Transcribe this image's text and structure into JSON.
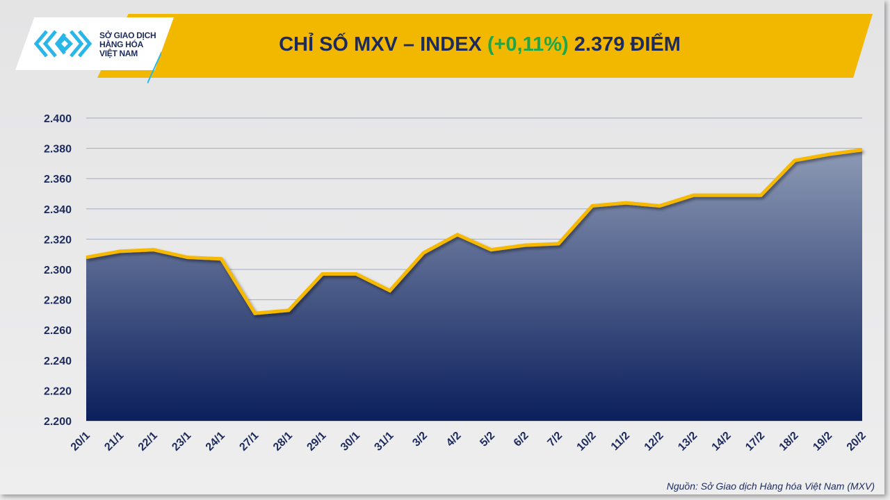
{
  "header": {
    "title_prefix": "CHỈ SỐ MXV – INDEX",
    "change": "(+0,11%)",
    "value": "2.379 ĐIỂM",
    "logo_text": [
      "SỞ GIAO DỊCH",
      "HÀNG HÓA",
      "VIỆT NAM"
    ]
  },
  "source": "Nguồn: Sở Giao dịch Hàng hóa Việt Nam (MXV)",
  "colors": {
    "line": "#f7b800",
    "area_top": "#8d9ab5",
    "area_bottom": "#0b1f5c",
    "change": "#1fa64a"
  },
  "chart_data": {
    "type": "area",
    "title": "CHỈ SỐ MXV – INDEX (+0,11%) 2.379 ĐIỂM",
    "xlabel": "",
    "ylabel": "",
    "ylim": [
      2200,
      2400
    ],
    "yticks": [
      2200,
      2220,
      2240,
      2260,
      2280,
      2300,
      2320,
      2340,
      2360,
      2380,
      2400
    ],
    "ytick_labels": [
      "2.200",
      "2.220",
      "2.240",
      "2.260",
      "2.280",
      "2.300",
      "2.320",
      "2.340",
      "2.360",
      "2.380",
      "2.400"
    ],
    "categories": [
      "20/1",
      "21/1",
      "22/1",
      "23/1",
      "24/1",
      "27/1",
      "28/1",
      "29/1",
      "30/1",
      "31/1",
      "3/2",
      "4/2",
      "5/2",
      "6/2",
      "7/2",
      "10/2",
      "11/2",
      "12/2",
      "13/2",
      "14/2",
      "17/2",
      "18/2",
      "19/2",
      "20/2"
    ],
    "values": [
      2308,
      2312,
      2313,
      2308,
      2307,
      2271,
      2273,
      2297,
      2297,
      2286,
      2311,
      2323,
      2313,
      2316,
      2317,
      2342,
      2344,
      2342,
      2349,
      2349,
      2349,
      2372,
      2376,
      2379
    ],
    "grid": true,
    "legend": "none"
  }
}
